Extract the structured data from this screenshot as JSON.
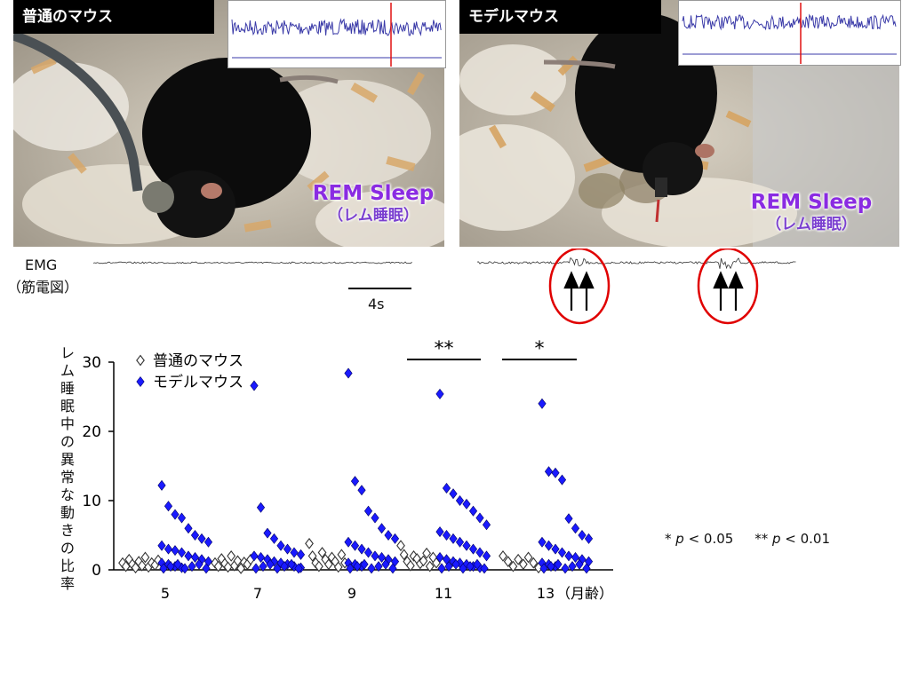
{
  "panels": {
    "left": {
      "label": "普通のマウス",
      "rem_title": "REM Sleep",
      "rem_sub": "（レム睡眠）"
    },
    "right": {
      "label": "モデルマウス",
      "rem_title": "REM Sleep",
      "rem_sub": "（レム睡眠）"
    }
  },
  "emg": {
    "label": "EMG",
    "label_sub": "（筋電図）",
    "scale_bar": "4s"
  },
  "colors": {
    "model": "#1a1aff",
    "normal": "#ffffff",
    "rem_text": "#8a2be2",
    "highlight_circle": "#e00000",
    "eeg_line": "#3a3aa8",
    "eeg_marker": "#e01010"
  },
  "chart_data": {
    "type": "scatter",
    "ylabel": "レム睡眠中の異常な動きの比率",
    "ylim": [
      0,
      30
    ],
    "yticks": [
      "0",
      "10",
      "20",
      "30"
    ],
    "categories": [
      "5",
      "7",
      "9",
      "11",
      "13"
    ],
    "x_unit": "（月齢）",
    "legend": {
      "placement": "top-left",
      "entries": [
        "普通のマウス",
        "モデルマウス"
      ]
    },
    "significance": [
      {
        "between": "11",
        "mark": "**"
      },
      {
        "between": "13",
        "mark": "*"
      }
    ],
    "series": [
      {
        "name": "普通のマウス",
        "marker": "open-diamond",
        "values": [
          [
            1,
            0.5,
            1.5,
            0.8,
            0.3,
            1.2,
            0.6,
            1.8,
            0.4,
            1,
            0.7,
            1.4
          ],
          [
            1,
            0.5,
            1.6,
            0.9,
            0.4,
            2,
            0.6,
            1.3,
            0.2,
            1.1,
            0.8,
            1.5
          ],
          [
            3.8,
            2,
            1,
            0.5,
            2.5,
            1.5,
            0.8,
            1.8,
            1.2,
            0.4,
            2.2,
            1
          ],
          [
            3.5,
            2.2,
            1.2,
            0.6,
            2,
            1.6,
            0.9,
            1.3,
            2.4,
            0.5,
            1.8,
            1
          ],
          [
            2,
            1.2,
            0.5,
            1.5,
            0.8,
            1.8,
            1,
            0.3
          ]
        ]
      },
      {
        "name": "モデルマウス",
        "marker": "filled-diamond",
        "values": [
          [
            12.2,
            9.2,
            8,
            7.5,
            6,
            5,
            4.5,
            4,
            3.5,
            3,
            2.8,
            2.5,
            2,
            1.8,
            1.5,
            1.2,
            1,
            0.8,
            0.5,
            0.3
          ],
          [
            26.6,
            9,
            5.3,
            4.5,
            3.5,
            3,
            2.5,
            2.2,
            2,
            1.8,
            1.5,
            1.2,
            1,
            0.8,
            0.5,
            0.3
          ],
          [
            28.4,
            12.8,
            11.5,
            8.5,
            7.5,
            6,
            5,
            4.5,
            4,
            3.5,
            3,
            2.5,
            2,
            1.8,
            1.5,
            1.2,
            1,
            0.8,
            0.5
          ],
          [
            25.4,
            11.8,
            11,
            10,
            9.5,
            8.5,
            7.5,
            6.5,
            5.5,
            5,
            4.5,
            4,
            3.5,
            3,
            2.5,
            2,
            1.8,
            1.5,
            1.2,
            1,
            0.8,
            0.5,
            0.3
          ],
          [
            24,
            14.2,
            14,
            13,
            7.4,
            6,
            5,
            4.5,
            4,
            3.5,
            3,
            2.5,
            2,
            1.8,
            1.5,
            1.2,
            1,
            0.8,
            0.5
          ]
        ]
      }
    ]
  },
  "pvalues": {
    "single_star": "*",
    "single_text": "< 0.05",
    "double_star": "**",
    "double_text": "< 0.01",
    "p": "p"
  }
}
